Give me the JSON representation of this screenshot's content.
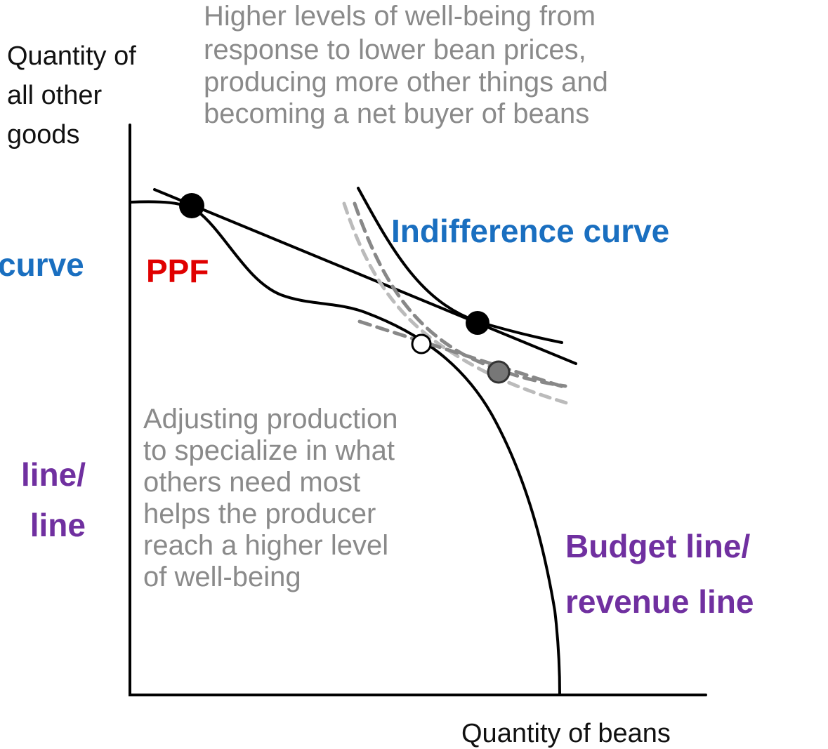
{
  "top_note": [
    "Higher levels of well-being from",
    "response to lower bean prices,",
    "producing more other things and",
    "becoming a net buyer of beans"
  ],
  "y_axis_label": [
    "Quantity of",
    "all other",
    "goods"
  ],
  "left_cropped_1": "curve",
  "left_cropped_2": [
    "line/",
    "line"
  ],
  "ppf_label": "PPF",
  "indifference_label": "Indifference curve",
  "middle_note": [
    "Adjusting production",
    "to specialize in what",
    "others need most",
    "helps the producer",
    "reach a higher level",
    "of well-being"
  ],
  "budget_label": [
    "Budget line/",
    "revenue line"
  ],
  "x_axis_label": "Quantity of beans"
}
